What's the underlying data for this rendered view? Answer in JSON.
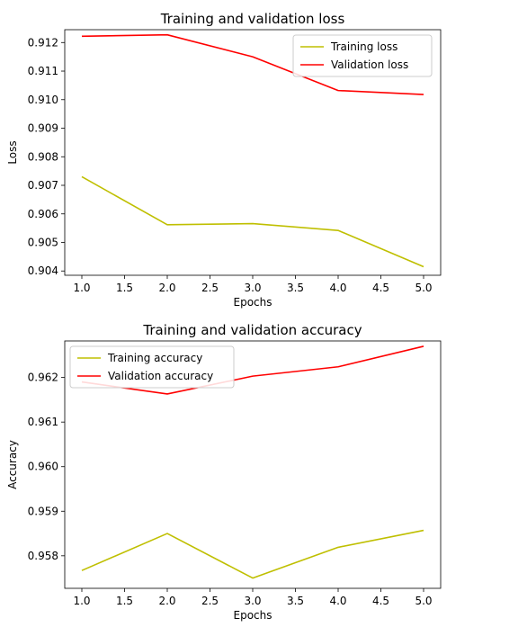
{
  "chart_data": [
    {
      "type": "line",
      "title": "Training and validation loss",
      "xlabel": "Epochs",
      "ylabel": "Loss",
      "x": [
        1,
        2,
        3,
        4,
        5
      ],
      "xlim": [
        0.8,
        5.2
      ],
      "ylim": [
        0.90385,
        0.91245
      ],
      "xticks": [
        1.0,
        1.5,
        2.0,
        2.5,
        3.0,
        3.5,
        4.0,
        4.5,
        5.0
      ],
      "yticks": [
        0.904,
        0.905,
        0.906,
        0.907,
        0.908,
        0.909,
        0.91,
        0.911,
        0.912
      ],
      "ytick_decimals": 3,
      "legend_position": "top-right",
      "grid": false,
      "series": [
        {
          "name": "Training loss",
          "color": "#bfbf00",
          "values": [
            0.9073,
            0.90562,
            0.90566,
            0.90542,
            0.90415
          ]
        },
        {
          "name": "Validation loss",
          "color": "#ff0000",
          "values": [
            0.91222,
            0.91227,
            0.9115,
            0.91032,
            0.91018
          ]
        }
      ]
    },
    {
      "type": "line",
      "title": "Training and validation accuracy",
      "xlabel": "Epochs",
      "ylabel": "Accuracy",
      "x": [
        1,
        2,
        3,
        4,
        5
      ],
      "xlim": [
        0.8,
        5.2
      ],
      "ylim": [
        0.95727,
        0.96282
      ],
      "xticks": [
        1.0,
        1.5,
        2.0,
        2.5,
        3.0,
        3.5,
        4.0,
        4.5,
        5.0
      ],
      "yticks": [
        0.958,
        0.959,
        0.96,
        0.961,
        0.962
      ],
      "ytick_decimals": 3,
      "legend_position": "top-left",
      "grid": false,
      "series": [
        {
          "name": "Training accuracy",
          "color": "#bfbf00",
          "values": [
            0.95767,
            0.9585,
            0.9575,
            0.95819,
            0.95857
          ]
        },
        {
          "name": "Validation accuracy",
          "color": "#ff0000",
          "values": [
            0.9619,
            0.96163,
            0.96203,
            0.96224,
            0.9627
          ]
        }
      ]
    }
  ]
}
